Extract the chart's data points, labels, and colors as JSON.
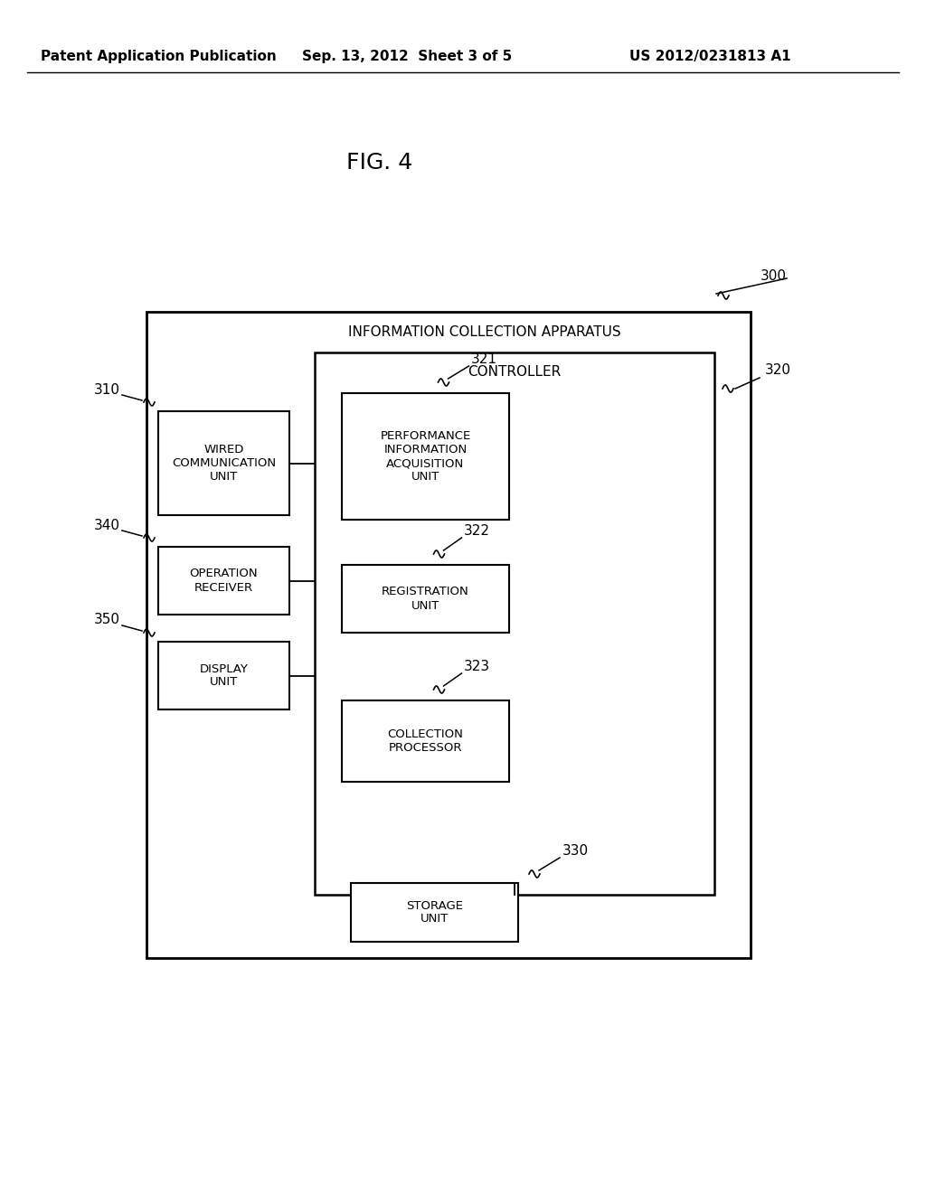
{
  "bg_color": "#ffffff",
  "header_left": "Patent Application Publication",
  "header_center": "Sep. 13, 2012  Sheet 3 of 5",
  "header_right": "US 2012/0231813 A1",
  "fig_label": "FIG. 4",
  "outer_label": "INFORMATION COLLECTION APPARATUS",
  "ctrl_label": "CONTROLLER",
  "ref300": "300",
  "ref320": "320",
  "ref310": "310",
  "ref340": "340",
  "ref350": "350",
  "ref321": "321",
  "ref322": "322",
  "ref323": "323",
  "ref330": "330",
  "wired_label": "WIRED\nCOMMUNICATION\nUNIT",
  "op_label": "OPERATION\nRECEIVER",
  "disp_label": "DISPLAY\nUNIT",
  "perf_label": "PERFORMANCE\nINFORMATION\nACQUISITION\nUNIT",
  "reg_label": "REGISTRATION\nUNIT",
  "coll_label": "COLLECTION\nPROCESSOR",
  "stor_label": "STORAGE\nUNIT"
}
